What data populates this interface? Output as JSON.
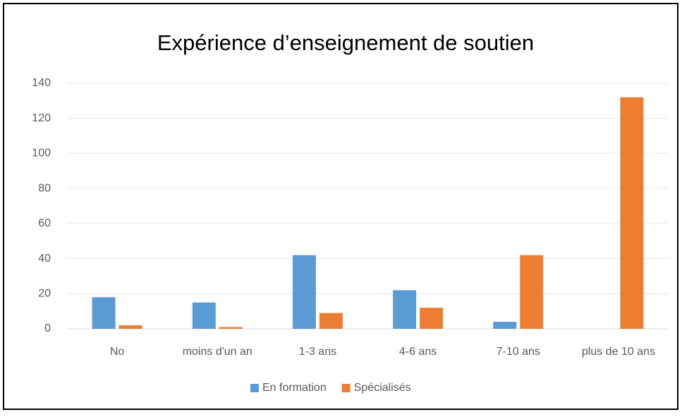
{
  "chart_data": {
    "type": "bar",
    "title": "Expérience d’enseignement de soutien",
    "categories": [
      "No",
      "moins d'un an",
      "1-3 ans",
      "4-6 ans",
      "7-10 ans",
      "plus de 10 ans"
    ],
    "series": [
      {
        "name": "En formation",
        "color": "#5b9bd5",
        "values": [
          18,
          15,
          42,
          22,
          4,
          0
        ]
      },
      {
        "name": "Spécialisés",
        "color": "#ed7d31",
        "values": [
          2,
          1,
          9,
          12,
          42,
          132
        ]
      }
    ],
    "ylim": [
      0,
      140
    ],
    "yticks": [
      0,
      20,
      40,
      60,
      80,
      100,
      120,
      140
    ],
    "grid": true,
    "legend": "bottom"
  }
}
